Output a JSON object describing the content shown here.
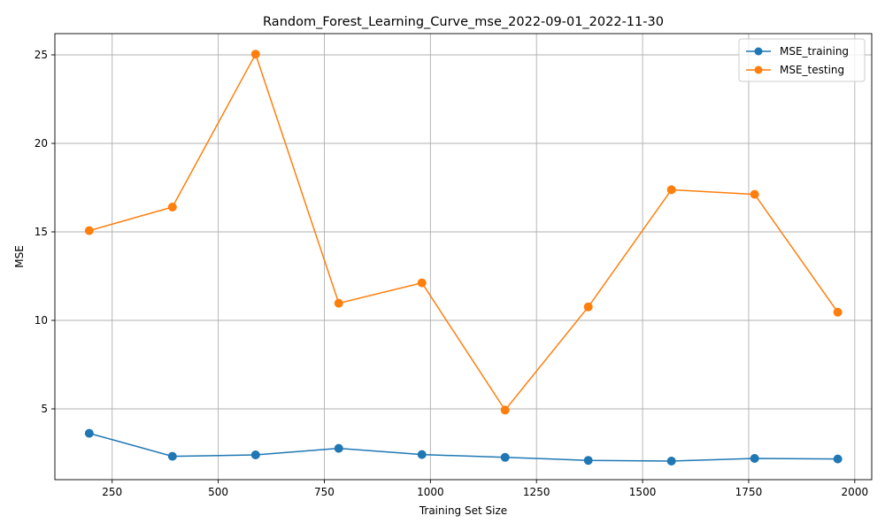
{
  "chart_data": {
    "type": "line",
    "title": "Random_Forest_Learning_Curve_mse_2022-09-01_2022-11-30",
    "xlabel": "Training Set Size",
    "ylabel": "MSE",
    "x": [
      196,
      392,
      588,
      784,
      980,
      1176,
      1372,
      1568,
      1764,
      1960
    ],
    "xlim": [
      115,
      2040
    ],
    "ylim": [
      1.0,
      26.2
    ],
    "x_ticks": [
      250,
      500,
      750,
      1000,
      1250,
      1500,
      1750,
      2000
    ],
    "y_ticks": [
      5,
      10,
      15,
      20,
      25
    ],
    "grid": true,
    "legend_position": "top-right",
    "series": [
      {
        "name": "MSE_training",
        "color": "#1f77b4",
        "marker": "circle",
        "values": [
          3.62,
          2.32,
          2.4,
          2.77,
          2.42,
          2.26,
          2.09,
          2.05,
          2.2,
          2.17
        ]
      },
      {
        "name": "MSE_testing",
        "color": "#ff7f0e",
        "marker": "circle",
        "values": [
          15.07,
          16.4,
          25.04,
          10.97,
          12.12,
          4.93,
          10.76,
          17.38,
          17.12,
          10.46
        ]
      }
    ]
  }
}
